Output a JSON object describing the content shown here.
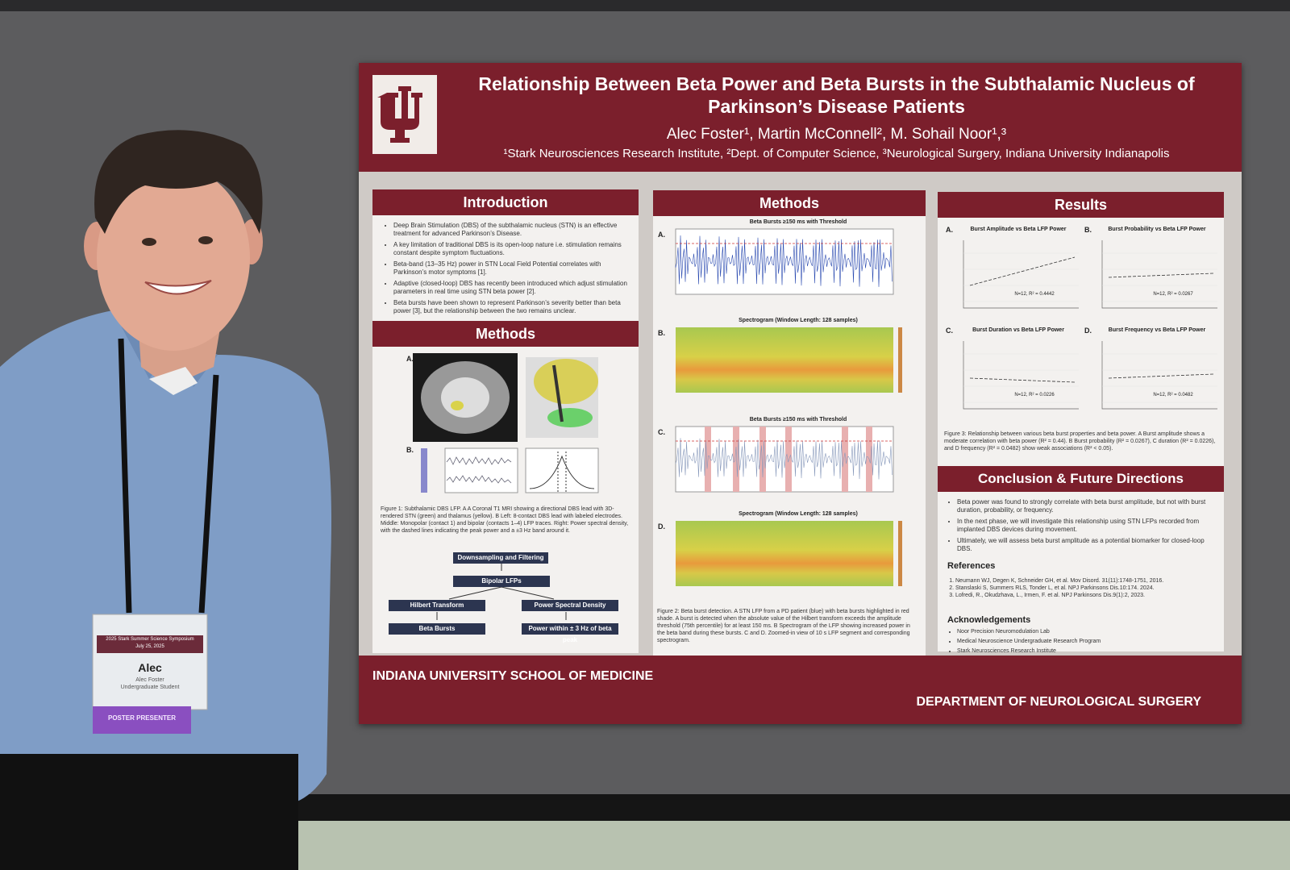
{
  "poster": {
    "title": "Relationship Between Beta Power and Beta Bursts in the Subthalamic Nucleus of Parkinson’s Disease Patients",
    "authors": "Alec Foster¹, Martin McConnell², M. Sohail Noor¹,³",
    "affiliations": "¹Stark Neurosciences Research Institute, ²Dept. of Computer Science, ³Neurological Surgery, Indiana University Indianapolis",
    "introduction": {
      "heading": "Introduction",
      "bullets": [
        "Deep Brain Stimulation (DBS) of the subthalamic nucleus (STN) is an effective treatment for advanced Parkinson’s Disease.",
        "A key limitation of traditional DBS is its open-loop nature i.e. stimulation remains constant despite symptom fluctuations.",
        "Beta-band (13–35 Hz) power in STN Local Field Potential correlates with Parkinson’s motor symptoms [1].",
        "Adaptive (closed-loop) DBS has recently been introduced which adjust stimulation parameters in real time using STN beta power [2].",
        "Beta bursts have been shown to represent Parkinson’s severity better than beta power [3], but the relationship between the two remains unclear."
      ]
    },
    "methods_figure": {
      "heading": "Methods",
      "panels": [
        "A.",
        "B."
      ],
      "caption": "Figure 1: Subthalamic DBS LFP. A A Coronal T1 MRI showing a directional DBS lead with 3D-rendered STN (green) and thalamus (yellow). B Left: 8-contact DBS lead with labeled electrodes. Middle: Monopolar (contact 1) and bipolar (contacts 1–4) LFP traces. Right: Power spectral density, with the dashed lines indicating the peak power and a ±3 Hz band around it.",
      "flow": [
        "Downsampling and Filtering",
        "Bipolar LFPs",
        "Hilbert Transform",
        "Power Spectral Density",
        "Beta Bursts",
        "Power within ± 3 Hz of beta peak"
      ]
    },
    "methods": {
      "heading": "Methods",
      "panels": [
        {
          "label": "A.",
          "title": "Beta Bursts ≥150 ms with Threshold"
        },
        {
          "label": "B.",
          "title": "Spectrogram (Window Length: 128 samples)"
        },
        {
          "label": "C.",
          "title": "Beta Bursts ≥150 ms with Threshold"
        },
        {
          "label": "D.",
          "title": "Spectrogram (Window Length: 128 samples)"
        }
      ],
      "caption": "Figure 2: Beta burst detection. A STN LFP from a PD patient (blue) with beta bursts highlighted in red shade. A burst is detected when the absolute value of the Hilbert transform exceeds the amplitude threshold (75th percentile) for at least 150 ms. B Spectrogram of the LFP showing increased power in the beta band during these bursts. C and D. Zoomed-in view of 10 s LFP segment and corresponding spectrogram."
    },
    "results": {
      "heading": "Results",
      "plots": [
        {
          "label": "A.",
          "title": "Burst Amplitude vs Beta LFP Power",
          "fit": "N=12, R² = 0.4442"
        },
        {
          "label": "B.",
          "title": "Burst Probability vs Beta LFP Power",
          "fit": "N=12, R² = 0.0267"
        },
        {
          "label": "C.",
          "title": "Burst Duration vs Beta LFP Power",
          "fit": "N=12, R² = 0.0226"
        },
        {
          "label": "D.",
          "title": "Burst Frequency vs Beta LFP Power",
          "fit": "N=12, R² = 0.0482"
        }
      ],
      "caption": "Figure 3: Relationship between various beta burst properties and beta power. A Burst amplitude shows a moderate correlation with beta power (R² = 0.44). B Burst probability (R² = 0.0267), C duration (R² = 0.0226), and D frequency (R² = 0.0482) show weak associations (R² < 0.05)."
    },
    "conclusion": {
      "heading": "Conclusion & Future Directions",
      "bullets": [
        "Beta power was found to strongly correlate with beta burst amplitude, but not with burst duration, probability, or frequency.",
        "In the next phase, we will investigate this relationship using STN LFPs recorded from implanted DBS devices during movement.",
        "Ultimately, we will assess beta burst amplitude as a potential biomarker for closed-loop DBS."
      ]
    },
    "references": {
      "heading": "References",
      "items": [
        "Neumann WJ, Degen K, Schneider GH, et al. Mov Disord. 31(11):1748-1751, 2016.",
        "Stanslaski S, Summers RLS, Tonder L, et al. NPJ Parkinsons Dis.10:174. 2024.",
        "Lofredi, R., Okudzhava, L., Irmen, F. et al. NPJ Parkinsons Dis.9(1):2, 2023."
      ]
    },
    "acknowledgements": {
      "heading": "Acknowledgements",
      "items": [
        "Noor Precision Neuromodulation Lab",
        "Medical Neuroscience Undergraduate Research Program",
        "Stark Neurosciences Research Institute"
      ]
    },
    "footer_left": "INDIANA UNIVERSITY SCHOOL OF MEDICINE",
    "footer_right": "DEPARTMENT OF NEUROLOGICAL SURGERY"
  },
  "badge": {
    "event": "2025 Stark Summer Science Symposium",
    "date": "July 25, 2025",
    "name": "Alec",
    "full_name": "Alec Foster",
    "role": "Undergraduate Student",
    "ribbon": "POSTER PRESENTER"
  }
}
